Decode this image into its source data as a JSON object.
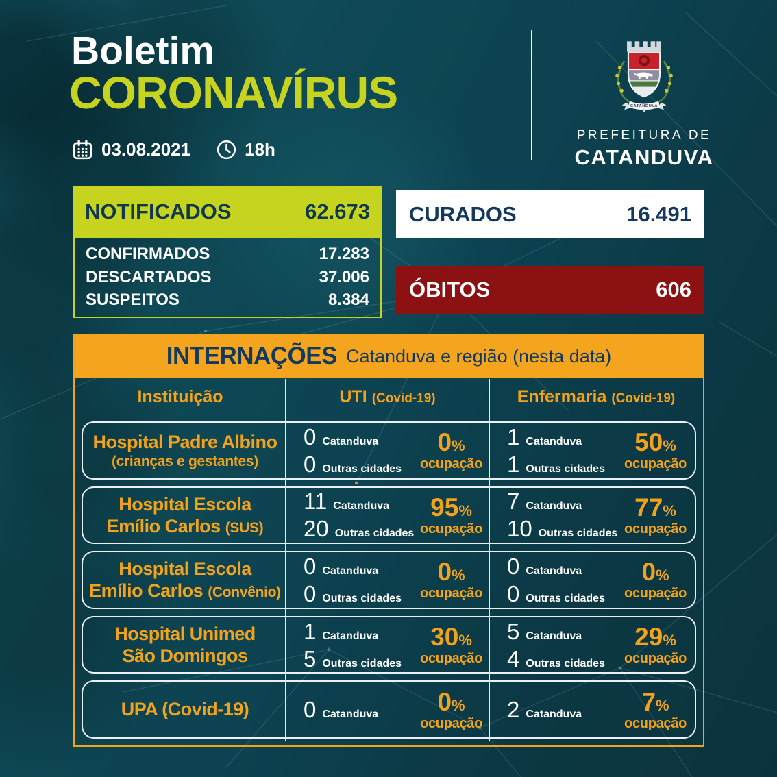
{
  "header": {
    "title_line1": "Boletim",
    "title_line2": "CORONAVÍRUS",
    "date_label": "03.08.2021",
    "time_label": "18h",
    "org_line1": "PREFEITURA DE",
    "org_line2": "CATANDUVA",
    "crest_banner": "CATANDUVA"
  },
  "summary": {
    "notificados": {
      "label": "NOTIFICADOS",
      "value": "62.673"
    },
    "breakdown": [
      {
        "label": "CONFIRMADOS",
        "value": "17.283"
      },
      {
        "label": "DESCARTADOS",
        "value": "37.006"
      },
      {
        "label": "SUSPEITOS",
        "value": "8.384"
      }
    ],
    "curados": {
      "label": "CURADOS",
      "value": "16.491"
    },
    "obitos": {
      "label": "ÓBITOS",
      "value": "606"
    }
  },
  "internacoes": {
    "title": "INTERNAÇÕES",
    "subtitle": "Catanduva e região (nesta data)",
    "columns": [
      {
        "label": "Instituição",
        "sub": ""
      },
      {
        "label": "UTI",
        "sub": "(Covid-19)"
      },
      {
        "label": "Enfermaria",
        "sub": "(Covid-19)"
      }
    ],
    "unit_labels": {
      "catanduva": "Catanduva",
      "outras": "Outras cidades",
      "ocupacao": "ocupação",
      "percent": "%"
    },
    "rows": [
      {
        "institution_lines": [
          [
            {
              "text": "Hospital Padre Albino",
              "size": "lg"
            }
          ],
          [
            {
              "text": "(crianças e gestantes)",
              "size": "sm"
            }
          ]
        ],
        "uti": {
          "entries": [
            {
              "value": "0",
              "label": "Catanduva"
            },
            {
              "value": "0",
              "label": "Outras cidades"
            }
          ],
          "occupancy": "0"
        },
        "enfermaria": {
          "entries": [
            {
              "value": "1",
              "label": "Catanduva"
            },
            {
              "value": "1",
              "label": "Outras cidades"
            }
          ],
          "occupancy": "50"
        }
      },
      {
        "institution_lines": [
          [
            {
              "text": "Hospital Escola",
              "size": "lg"
            }
          ],
          [
            {
              "text": "Emílio Carlos ",
              "size": "lg"
            },
            {
              "text": "(SUS)",
              "size": "sm"
            }
          ]
        ],
        "uti": {
          "entries": [
            {
              "value": "11",
              "label": "Catanduva"
            },
            {
              "value": "20",
              "label": "Outras cidades"
            }
          ],
          "occupancy": "95"
        },
        "enfermaria": {
          "entries": [
            {
              "value": "7",
              "label": "Catanduva"
            },
            {
              "value": "10",
              "label": "Outras cidades"
            }
          ],
          "occupancy": "77"
        }
      },
      {
        "institution_lines": [
          [
            {
              "text": "Hospital Escola",
              "size": "lg"
            }
          ],
          [
            {
              "text": "Emílio Carlos ",
              "size": "lg"
            },
            {
              "text": "(Convênio)",
              "size": "sm"
            }
          ]
        ],
        "uti": {
          "entries": [
            {
              "value": "0",
              "label": "Catanduva"
            },
            {
              "value": "0",
              "label": "Outras cidades"
            }
          ],
          "occupancy": "0"
        },
        "enfermaria": {
          "entries": [
            {
              "value": "0",
              "label": "Catanduva"
            },
            {
              "value": "0",
              "label": "Outras cidades"
            }
          ],
          "occupancy": "0"
        }
      },
      {
        "institution_lines": [
          [
            {
              "text": "Hospital Unimed",
              "size": "lg"
            }
          ],
          [
            {
              "text": "São Domingos",
              "size": "lg"
            }
          ]
        ],
        "uti": {
          "entries": [
            {
              "value": "1",
              "label": "Catanduva"
            },
            {
              "value": "5",
              "label": "Outras cidades"
            }
          ],
          "occupancy": "30"
        },
        "enfermaria": {
          "entries": [
            {
              "value": "5",
              "label": "Catanduva"
            },
            {
              "value": "4",
              "label": "Outras cidades"
            }
          ],
          "occupancy": "29"
        }
      },
      {
        "institution_lines": [
          [
            {
              "text": "UPA (Covid-19)",
              "size": "lg"
            }
          ]
        ],
        "uti": {
          "entries": [
            {
              "value": "0",
              "label": "Catanduva"
            }
          ],
          "occupancy": "0"
        },
        "enfermaria": {
          "entries": [
            {
              "value": "2",
              "label": "Catanduva"
            }
          ],
          "occupancy": "7"
        }
      }
    ]
  },
  "colors": {
    "lime": "#c6d41f",
    "orange": "#f4a41d",
    "dark_red": "#8c1113",
    "navy": "#113a5e",
    "teal_background": "#0d4350",
    "white": "#ffffff"
  }
}
